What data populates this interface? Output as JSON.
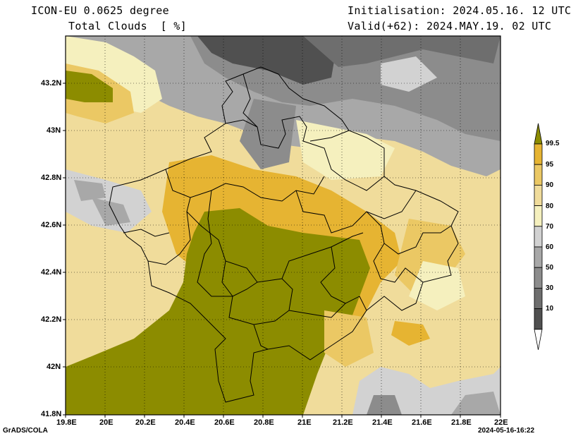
{
  "header": {
    "model": "ICON-EU 0.0625 degree",
    "variable": "Total Clouds  [ %]",
    "init": "Initialisation: 2024.05.16. 12 UTC",
    "valid": "Valid(+62): 2024.MAY.19. 02 UTC"
  },
  "axes": {
    "lat_labels": [
      "43.2N",
      "43N",
      "42.8N",
      "42.6N",
      "42.4N",
      "42.2N",
      "42N",
      "41.8N"
    ],
    "lon_labels": [
      "19.8E",
      "20E",
      "20.2E",
      "20.4E",
      "20.6E",
      "20.8E",
      "21E",
      "21.2E",
      "21.4E",
      "21.6E",
      "21.8E",
      "22E"
    ]
  },
  "colorbar": {
    "labels": [
      "99.5",
      "95",
      "90",
      "80",
      "70",
      "60",
      "50",
      "30",
      "10"
    ],
    "colors": [
      "#8c8c00",
      "#e6b432",
      "#ebc864",
      "#f0dc9b",
      "#f5f0be",
      "#d2d2d2",
      "#a8a8a8",
      "#8c8c8c",
      "#6e6e6e",
      "#505050",
      "#ffffff"
    ]
  },
  "footer": {
    "left": "GrADS/COLA",
    "right": "2024-05-16-16:22"
  }
}
